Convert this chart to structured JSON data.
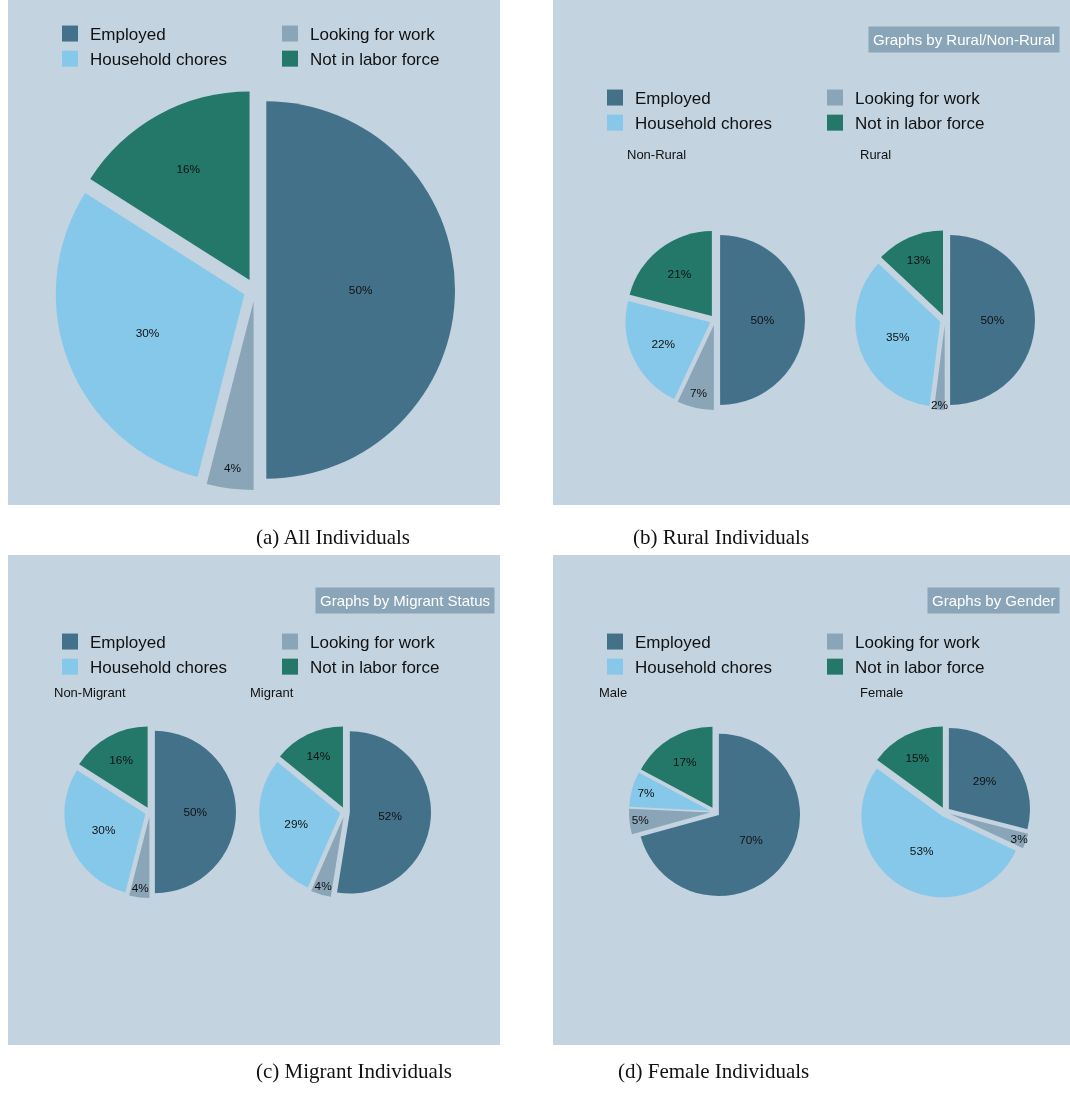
{
  "chart_data": [
    {
      "type": "pie",
      "categories": [
        "Employed",
        "Looking for work",
        "Household chores",
        "Not in labor force"
      ],
      "colors": [
        "#44718a",
        "#8aa5b8",
        "#86c8ea",
        "#23786a"
      ],
      "legend": "top",
      "annotations": [
        "(a) All Individuals"
      ],
      "series": [
        {
          "values": [
            50,
            4,
            30,
            16
          ],
          "value_labels": [
            "50%",
            "4%",
            "30%",
            "16%"
          ]
        }
      ]
    },
    {
      "type": "pie",
      "categories": [
        "Employed",
        "Looking for work",
        "Household chores",
        "Not in labor force"
      ],
      "colors": [
        "#44718a",
        "#8aa5b8",
        "#86c8ea",
        "#23786a"
      ],
      "legend": "top",
      "annotations": [
        "Graphs by Rural/Non-Rural",
        "(b) Rural Individuals"
      ],
      "series": [
        {
          "name": "Non-Rural",
          "values": [
            50,
            7,
            22,
            21
          ],
          "value_labels": [
            "50%",
            "7%",
            "22%",
            "21%"
          ]
        },
        {
          "name": "Rural",
          "values": [
            50,
            2,
            35,
            13
          ],
          "value_labels": [
            "50%",
            "2%",
            "35%",
            "13%"
          ]
        }
      ]
    },
    {
      "type": "pie",
      "categories": [
        "Employed",
        "Looking for work",
        "Household chores",
        "Not in labor force"
      ],
      "colors": [
        "#44718a",
        "#8aa5b8",
        "#86c8ea",
        "#23786a"
      ],
      "legend": "top",
      "annotations": [
        "Graphs by Migrant Status",
        "(c) Migrant Individuals"
      ],
      "series": [
        {
          "name": "Non-Migrant",
          "values": [
            50,
            4,
            30,
            16
          ],
          "value_labels": [
            "50%",
            "4%",
            "30%",
            "16%"
          ]
        },
        {
          "name": "Migrant",
          "values": [
            52,
            4,
            29,
            14
          ],
          "value_labels": [
            "52%",
            "4%",
            "29%",
            "14%"
          ]
        }
      ]
    },
    {
      "type": "pie",
      "categories": [
        "Employed",
        "Looking for work",
        "Household chores",
        "Not in labor force"
      ],
      "colors": [
        "#44718a",
        "#8aa5b8",
        "#86c8ea",
        "#23786a"
      ],
      "legend": "top",
      "annotations": [
        "Graphs by Gender",
        "(d) Female Individuals"
      ],
      "series": [
        {
          "name": "Male",
          "values": [
            70,
            5,
            7,
            17
          ],
          "value_labels": [
            "70%",
            "5%",
            "7%",
            "17%"
          ]
        },
        {
          "name": "Female",
          "values": [
            29,
            3,
            53,
            15
          ],
          "value_labels": [
            "29%",
            "3%",
            "53%",
            "15%"
          ]
        }
      ]
    }
  ]
}
